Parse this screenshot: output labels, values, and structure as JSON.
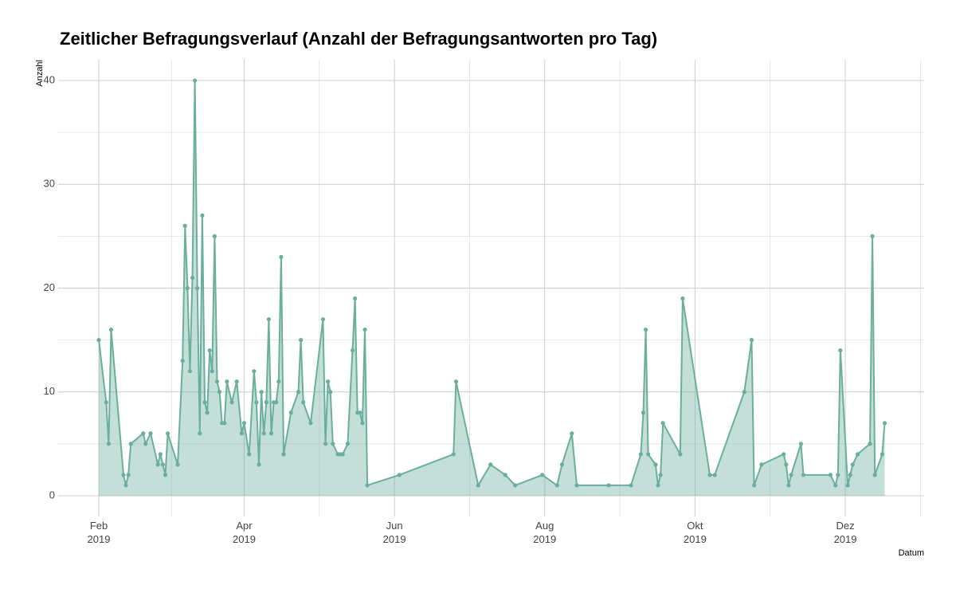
{
  "chart_data": {
    "type": "area-line",
    "title": "Zeitlicher Befragungsverlauf (Anzahl der Befragungsantworten pro Tag)",
    "y_label": "Anzahl",
    "x_label": "Datum",
    "color": "#6aaf9b",
    "x": [
      32,
      35,
      36,
      37,
      42,
      43,
      44,
      45,
      50,
      51,
      53,
      56,
      57,
      58,
      59,
      60,
      64,
      66,
      67,
      68,
      69,
      70,
      71,
      72,
      73,
      74,
      75,
      76,
      77,
      78,
      79,
      80,
      81,
      82,
      83,
      84,
      86,
      88,
      90,
      91,
      93,
      95,
      96,
      97,
      98,
      99,
      100,
      101,
      102,
      103,
      104,
      105,
      106,
      107,
      110,
      113,
      114,
      115,
      118,
      123,
      124,
      125,
      126,
      127,
      129,
      130,
      131,
      133,
      135,
      136,
      137,
      138,
      139,
      140,
      141,
      154,
      176,
      177,
      186,
      191,
      197,
      201,
      212,
      218,
      220,
      224,
      226,
      239,
      248,
      252,
      253,
      254,
      255,
      258,
      259,
      260,
      261,
      268,
      269,
      280,
      282,
      294,
      297,
      298,
      301,
      310,
      311,
      312,
      313,
      317,
      318,
      329,
      331,
      332,
      333,
      336,
      337,
      338,
      340,
      345,
      346,
      347,
      350,
      351
    ],
    "values": [
      15,
      9,
      5,
      16,
      2,
      1,
      2,
      5,
      6,
      5,
      6,
      3,
      4,
      3,
      2,
      6,
      3,
      13,
      26,
      20,
      12,
      21,
      40,
      20,
      6,
      27,
      9,
      8,
      14,
      12,
      25,
      11,
      10,
      7,
      7,
      11,
      9,
      11,
      6,
      7,
      4,
      12,
      9,
      3,
      10,
      6,
      9,
      17,
      6,
      9,
      9,
      11,
      23,
      4,
      8,
      10,
      15,
      9,
      7,
      17,
      5,
      11,
      10,
      5,
      4,
      4,
      4,
      5,
      14,
      19,
      8,
      8,
      7,
      16,
      1,
      2,
      4,
      11,
      1,
      3,
      2,
      1,
      2,
      1,
      3,
      6,
      1,
      1,
      1,
      4,
      8,
      16,
      4,
      3,
      1,
      2,
      7,
      4,
      19,
      2,
      2,
      10,
      15,
      1,
      3,
      4,
      3,
      1,
      2,
      5,
      2,
      2,
      1,
      2,
      14,
      1,
      2,
      3,
      4,
      5,
      25,
      2,
      4,
      7
    ],
    "xlim": [
      15.5,
      367
    ],
    "xticks": [
      {
        "value": 32,
        "label": "Feb\n2019"
      },
      {
        "value": 91,
        "label": "Apr\n2019"
      },
      {
        "value": 152,
        "label": "Jun\n2019"
      },
      {
        "value": 213,
        "label": "Aug\n2019"
      },
      {
        "value": 274,
        "label": "Okt\n2019"
      },
      {
        "value": 335,
        "label": "Dez\n2019"
      }
    ],
    "ylim": [
      -2,
      42
    ],
    "yticks": [
      0,
      10,
      20,
      30,
      40
    ],
    "grid": true
  }
}
